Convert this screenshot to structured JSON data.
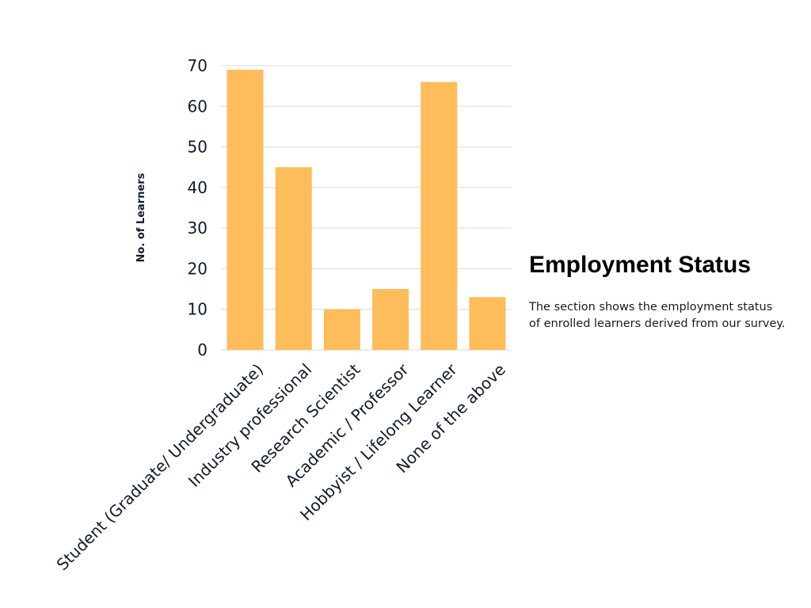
{
  "chart_data": {
    "type": "bar",
    "categories": [
      "Student (Graduate/ Undergraduate)",
      "Industry professional",
      "Research Scientist",
      "Academic / Professor",
      "Hobbyist / Lifelong Learner",
      "None of the above"
    ],
    "values": [
      69,
      45,
      10,
      15,
      66,
      13
    ],
    "ylabel": "No. of Learners",
    "xlabel": "",
    "ylim": [
      0,
      70
    ],
    "yticks": [
      0,
      10,
      20,
      30,
      40,
      50,
      60,
      70
    ],
    "grid": true,
    "bar_color": "#FFBC5B",
    "grid_color": "#d9d9d9"
  },
  "panel": {
    "title": "Employment Status",
    "lines": [
      "The section shows the employment status",
      "of enrolled learners derived from our survey."
    ]
  }
}
